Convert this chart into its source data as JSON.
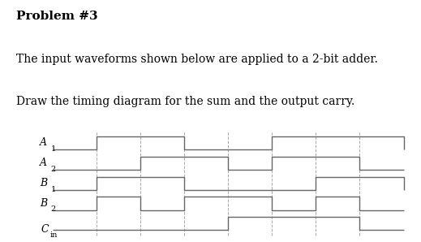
{
  "title_line1": "Problem #3",
  "title_line2": "The input waveforms shown below are applied to a 2-bit adder.",
  "title_line3": "Draw the timing diagram for the sum and the output carry.",
  "signals": {
    "A1": [
      0,
      1,
      1,
      0,
      0,
      1,
      1,
      1,
      0
    ],
    "A2": [
      0,
      0,
      1,
      1,
      0,
      1,
      1,
      0,
      0
    ],
    "B1": [
      0,
      1,
      1,
      0,
      0,
      0,
      1,
      1,
      0
    ],
    "B2": [
      0,
      1,
      0,
      1,
      1,
      0,
      1,
      0,
      0
    ],
    "Cin": [
      0,
      0,
      0,
      0,
      1,
      1,
      1,
      0,
      0
    ]
  },
  "label_keys": [
    "A1",
    "A2",
    "B1",
    "B2",
    "Cin"
  ],
  "label_main": [
    "A",
    "A",
    "B",
    "B",
    "C"
  ],
  "label_sub": [
    "1",
    "2",
    "1",
    "2",
    "in"
  ],
  "n_time": 8,
  "dashed_positions": [
    1,
    2,
    3,
    4,
    5,
    6,
    7
  ],
  "low_val": 0.15,
  "high_val": 0.8,
  "line_color": "#666666",
  "dashed_color": "#aaaaaa",
  "bg_color": "#ffffff",
  "text_color": "#000000",
  "title1_fontsize": 11,
  "body_fontsize": 10,
  "label_fontsize": 9,
  "sub_fontsize": 7
}
